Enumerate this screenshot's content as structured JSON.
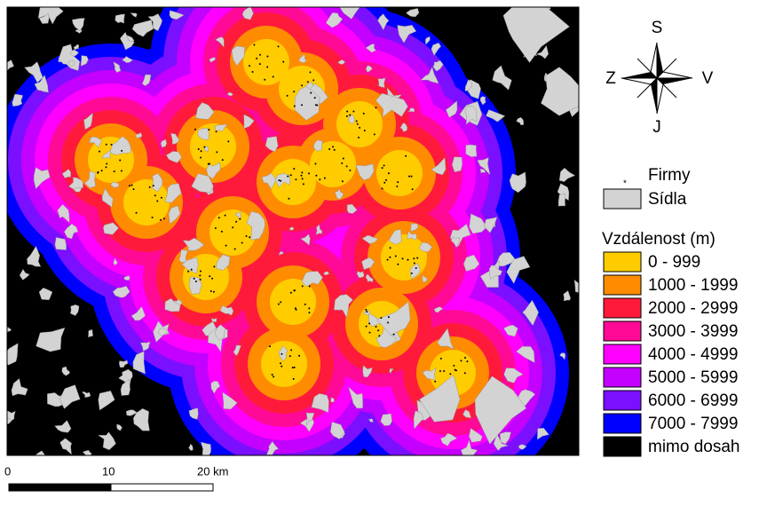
{
  "compass": {
    "north": "S",
    "west": "Z",
    "east": "V",
    "south": "J"
  },
  "legend": {
    "points": "Firmy",
    "areas": "Sídla",
    "areas_color": "#d3d3d3",
    "distance_title": "Vzdálenost (m)",
    "classes": [
      {
        "label": "0 - 999",
        "color": "#ffcc00"
      },
      {
        "label": "1000 - 1999",
        "color": "#ff8c00"
      },
      {
        "label": "2000 - 2999",
        "color": "#ff1a3c"
      },
      {
        "label": "3000 - 3999",
        "color": "#ff0a96"
      },
      {
        "label": "4000 - 4999",
        "color": "#ff00ff"
      },
      {
        "label": "5000 - 5999",
        "color": "#c400ff"
      },
      {
        "label": "6000 - 6999",
        "color": "#7a10ff"
      },
      {
        "label": "7000 - 7999",
        "color": "#0000ff"
      },
      {
        "label": "mimo dosah",
        "color": "#000000"
      }
    ]
  },
  "scale_bar": {
    "labels": [
      "0",
      "10",
      "20 km"
    ]
  }
}
